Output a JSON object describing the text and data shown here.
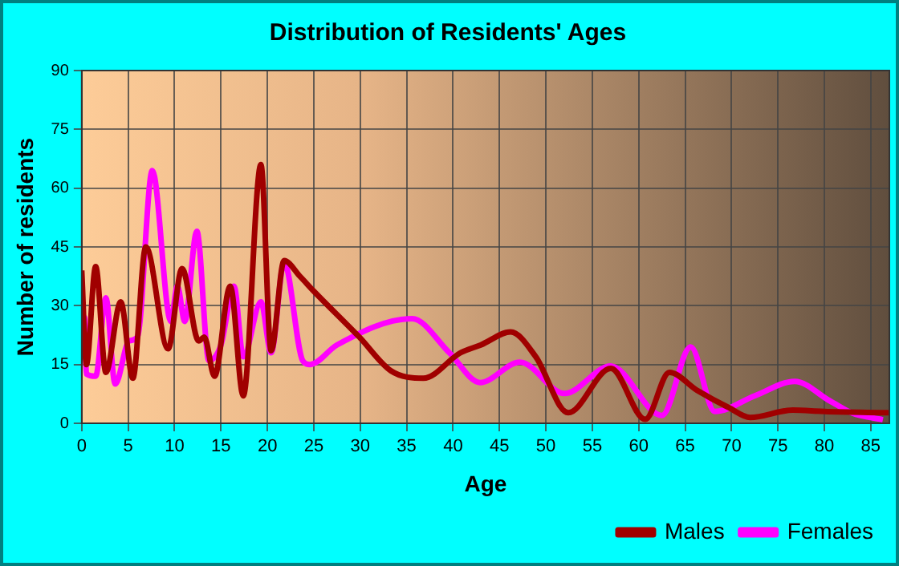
{
  "chart_data": {
    "type": "line",
    "title": "Distribution of Residents' Ages",
    "xlabel": "Age",
    "ylabel": "Number of residents",
    "xlim": [
      0,
      87
    ],
    "xticks": [
      0,
      5,
      10,
      15,
      20,
      25,
      30,
      35,
      40,
      45,
      50,
      55,
      60,
      65,
      70,
      75,
      80,
      85
    ],
    "ylim": [
      0,
      90
    ],
    "yticks": [
      0,
      15,
      30,
      45,
      60,
      75,
      90
    ],
    "grid": true,
    "legend": "bottom right",
    "marker": "none",
    "line_style": "solid",
    "series": [
      {
        "name": "Males",
        "color": "#a00000",
        "x": [
          0,
          0.5,
          1.5,
          2.6,
          4.2,
          5.5,
          6.9,
          9.3,
          10.8,
          12.6,
          13.2,
          14.3,
          16,
          17.4,
          19.3,
          20.4,
          21.8,
          23.5,
          25,
          29.9,
          33.3,
          36.8,
          40.8,
          43,
          46.2,
          48.9,
          52.4,
          57,
          60.7,
          63.3,
          66.3,
          69.7,
          72,
          76.6,
          80,
          87
        ],
        "values": [
          39,
          15,
          40,
          13,
          31,
          11.5,
          45,
          19,
          39.5,
          21,
          22,
          12,
          35,
          7,
          66,
          18.5,
          41.5,
          37.5,
          33.7,
          22,
          13.4,
          11.5,
          18,
          20,
          23.3,
          17,
          2.7,
          14,
          1,
          13,
          8.4,
          4,
          1.5,
          3.4,
          3,
          2.7
        ]
      },
      {
        "name": "Females",
        "color": "#ff00ff",
        "x": [
          0,
          0.3,
          0.5,
          1.5,
          2.6,
          3.6,
          5.1,
          6,
          7.6,
          9.6,
          10.3,
          11.1,
          12.4,
          13.7,
          15,
          16.4,
          17.4,
          19.3,
          20.4,
          21.8,
          23.8,
          24.6,
          27.5,
          35.6,
          39.6,
          42.9,
          47.2,
          52,
          57,
          62.5,
          65.6,
          68.2,
          72.5,
          76.8,
          80.6,
          83,
          86.3
        ],
        "values": [
          27,
          27,
          12.6,
          12,
          32,
          10,
          21,
          22,
          64.5,
          26,
          35,
          26,
          49,
          16,
          20,
          35,
          17,
          31,
          18,
          41,
          16,
          15,
          20,
          26.7,
          18,
          10.4,
          15.6,
          7.6,
          14.6,
          2,
          19.5,
          3,
          7,
          10.7,
          5.7,
          2.6,
          0.9
        ]
      }
    ]
  }
}
